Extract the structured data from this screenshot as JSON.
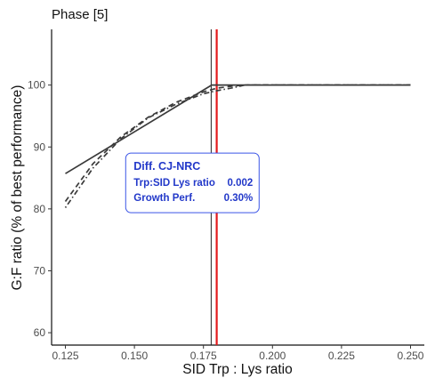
{
  "chart_data": {
    "type": "line",
    "title": "Phase [5]",
    "xlabel": "SID Trp : Lys ratio",
    "ylabel": "G:F ratio (% of best performance)",
    "xlim": [
      0.12,
      0.255
    ],
    "ylim": [
      58,
      109
    ],
    "x_ticks": [
      0.125,
      0.15,
      0.175,
      0.2,
      0.225,
      0.25
    ],
    "x_tick_labels": [
      "0.125",
      "0.150",
      "0.175",
      "0.200",
      "0.225",
      "0.250"
    ],
    "y_ticks": [
      60,
      70,
      80,
      90,
      100
    ],
    "y_tick_labels": [
      "60",
      "70",
      "80",
      "90",
      "100"
    ],
    "grid": false,
    "series": [
      {
        "style": "solid",
        "color": "#3a3a3a",
        "x": [
          0.125,
          0.178,
          0.25
        ],
        "y": [
          85.7,
          100,
          100
        ]
      },
      {
        "style": "dashed",
        "color": "#3a3a3a",
        "x": [
          0.125,
          0.135,
          0.145,
          0.155,
          0.165,
          0.175,
          0.18,
          0.185,
          0.19,
          0.2,
          0.25
        ],
        "y": [
          81.2,
          87.3,
          91.6,
          94.8,
          97.2,
          98.9,
          99.5,
          99.8,
          100,
          100,
          100
        ]
      },
      {
        "style": "dotdash",
        "color": "#3a3a3a",
        "x": [
          0.125,
          0.135,
          0.145,
          0.155,
          0.165,
          0.175,
          0.18,
          0.185,
          0.19,
          0.2,
          0.25
        ],
        "y": [
          80.2,
          86.6,
          91.3,
          94.7,
          96.9,
          98.6,
          99.1,
          99.5,
          100,
          100,
          100
        ]
      }
    ],
    "vlines": [
      {
        "x": 0.1778,
        "color": "#222222",
        "width": 1
      },
      {
        "x": 0.1798,
        "color": "#e31a1c",
        "width": 2.2
      }
    ],
    "annotation": {
      "header": "Diff. CJ-NRC",
      "rows": [
        {
          "label": "Trp:SID Lys ratio",
          "value": "0.002"
        },
        {
          "label": "Growth Perf.",
          "value": "0.30%"
        }
      ],
      "x": 0.171,
      "y": 84.2,
      "border_color": "#3b55e6",
      "text_color": "#2238c9"
    }
  }
}
